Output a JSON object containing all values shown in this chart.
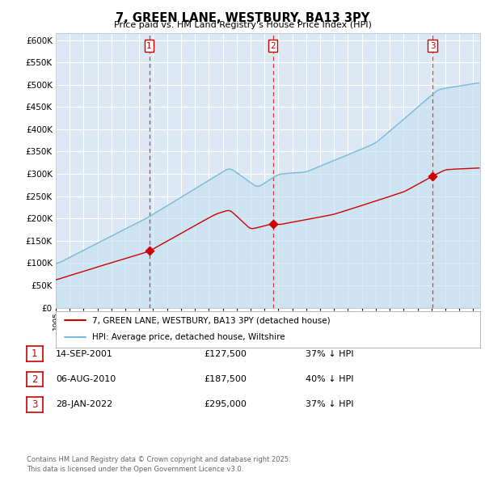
{
  "title": "7, GREEN LANE, WESTBURY, BA13 3PY",
  "subtitle": "Price paid vs. HM Land Registry's House Price Index (HPI)",
  "bg_color": "#dce9f5",
  "plot_bg_color": "#dce9f5",
  "hpi_color": "#7ab8d9",
  "hpi_fill_color": "#c5dff0",
  "price_color": "#cc0000",
  "grid_color": "#ffffff",
  "purchases": [
    {
      "date_num": 2001.71,
      "price": 127500,
      "label": "1"
    },
    {
      "date_num": 2010.6,
      "price": 187500,
      "label": "2"
    },
    {
      "date_num": 2022.08,
      "price": 295000,
      "label": "3"
    }
  ],
  "vline_dates": [
    2001.71,
    2010.6,
    2022.08
  ],
  "ylabel_ticks": [
    0,
    50000,
    100000,
    150000,
    200000,
    250000,
    300000,
    350000,
    400000,
    450000,
    500000,
    550000,
    600000
  ],
  "ylim": [
    0,
    615000
  ],
  "xlim_start": 1995.0,
  "xlim_end": 2025.5,
  "legend_entries": [
    "7, GREEN LANE, WESTBURY, BA13 3PY (detached house)",
    "HPI: Average price, detached house, Wiltshire"
  ],
  "table_rows": [
    {
      "num": "1",
      "date": "14-SEP-2001",
      "price": "£127,500",
      "pct": "37% ↓ HPI"
    },
    {
      "num": "2",
      "date": "06-AUG-2010",
      "price": "£187,500",
      "pct": "40% ↓ HPI"
    },
    {
      "num": "3",
      "date": "28-JAN-2022",
      "price": "£295,000",
      "pct": "37% ↓ HPI"
    }
  ],
  "footer": "Contains HM Land Registry data © Crown copyright and database right 2025.\nThis data is licensed under the Open Government Licence v3.0."
}
